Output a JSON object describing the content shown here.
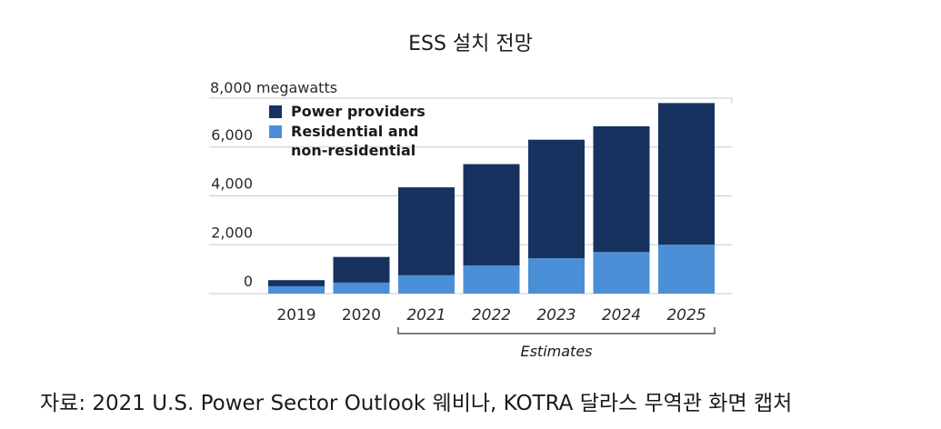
{
  "title": "ESS 설치 전망",
  "source": "자료: 2021 U.S. Power Sector Outlook 웨비나, KOTRA 달라스 무역관 화면 캡처",
  "chart_data": {
    "type": "bar",
    "stacked": true,
    "categories": [
      "2019",
      "2020",
      "2021",
      "2022",
      "2023",
      "2024",
      "2025"
    ],
    "estimated_categories": [
      "2021",
      "2022",
      "2023",
      "2024",
      "2025"
    ],
    "series": [
      {
        "name": "Residential and non-residential",
        "color": "#4b8fd6",
        "values": [
          300,
          450,
          750,
          1150,
          1450,
          1700,
          2000
        ]
      },
      {
        "name": "Power providers",
        "color": "#17325f",
        "values": [
          250,
          1050,
          3600,
          4150,
          4850,
          5150,
          5800
        ]
      }
    ],
    "legend_lines": [
      [
        "Power providers"
      ],
      [
        "Residential and",
        "non-residential"
      ]
    ],
    "legend_position": "top-left",
    "ylabel_top": "8,000 megawatts",
    "yticks": [
      "0",
      "2,000",
      "4,000",
      "6,000"
    ],
    "ylim": [
      0,
      8000
    ],
    "grid": true,
    "annotation": "Estimates"
  }
}
